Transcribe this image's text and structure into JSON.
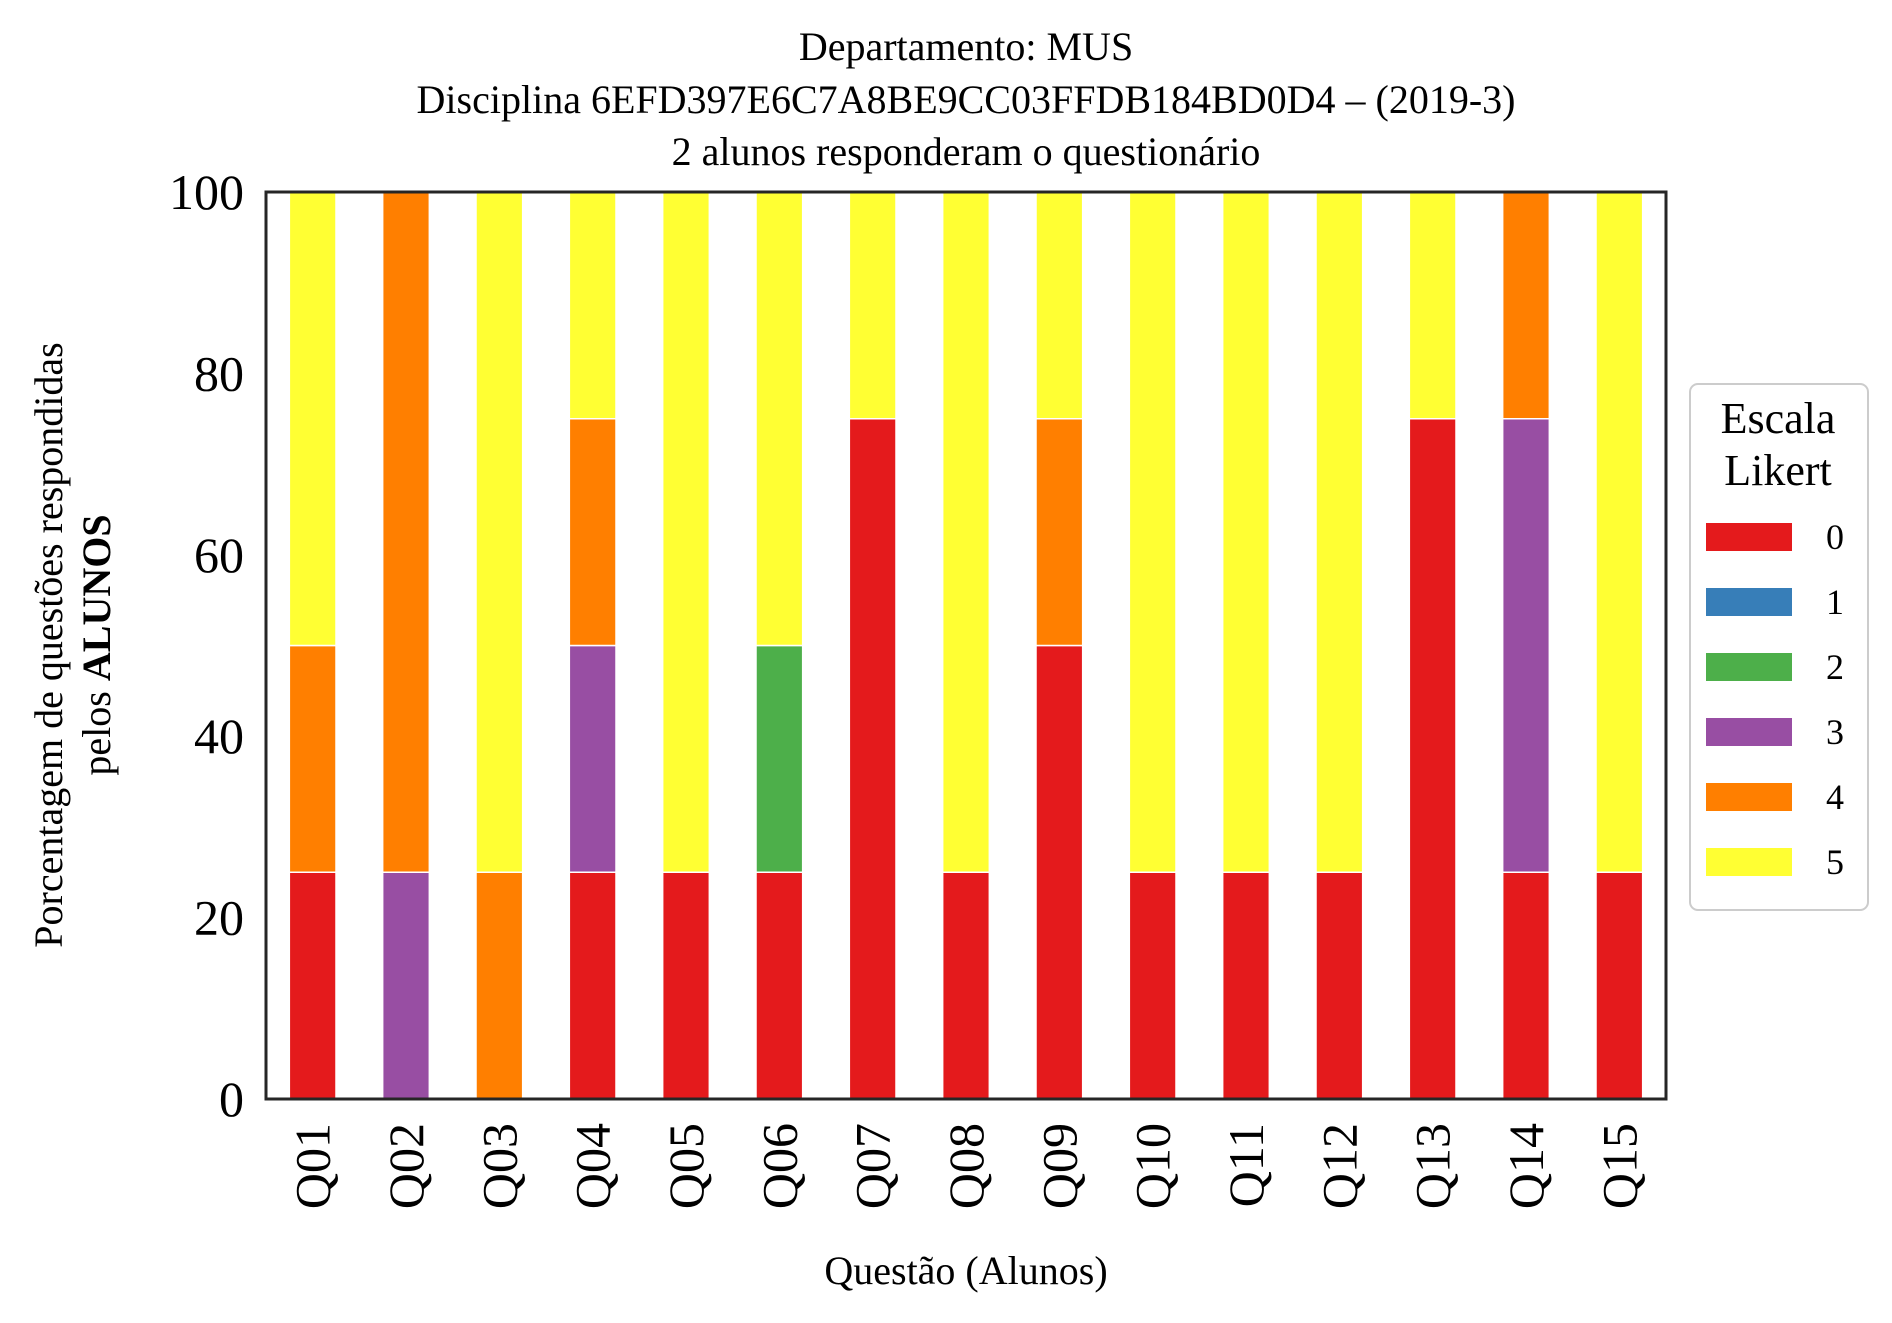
{
  "chart_data": {
    "type": "bar",
    "stacked": true,
    "title_lines": [
      "Departamento: MUS",
      "Disciplina 6EFD397E6C7A8BE9CC03FFDB184BD0D4 – (2019-3)",
      "2 alunos responderam o questionário"
    ],
    "xlabel": "Questão (Alunos)",
    "ylabel_line1": "Porcentagem de questões respondidas",
    "ylabel_line2_prefix": "pelos ",
    "ylabel_line2_bold": "ALUNOS",
    "ylim": [
      0,
      100
    ],
    "yticks": [
      "0",
      "20",
      "40",
      "60",
      "80",
      "100"
    ],
    "categories": [
      "Q01",
      "Q02",
      "Q03",
      "Q04",
      "Q05",
      "Q06",
      "Q07",
      "Q08",
      "Q09",
      "Q10",
      "Q11",
      "Q12",
      "Q13",
      "Q14",
      "Q15"
    ],
    "legend_title_lines": [
      "Escala",
      "Likert"
    ],
    "legend_position": "right",
    "grid": false,
    "series": [
      {
        "name": "0",
        "color": "#e41a1c",
        "values": [
          25,
          0,
          0,
          25,
          25,
          25,
          75,
          25,
          50,
          25,
          25,
          25,
          75,
          25,
          25
        ]
      },
      {
        "name": "1",
        "color": "#377eb8",
        "values": [
          0,
          0,
          0,
          0,
          0,
          0,
          0,
          0,
          0,
          0,
          0,
          0,
          0,
          0,
          0
        ]
      },
      {
        "name": "2",
        "color": "#4daf4a",
        "values": [
          0,
          0,
          0,
          0,
          0,
          25,
          0,
          0,
          0,
          0,
          0,
          0,
          0,
          0,
          0
        ]
      },
      {
        "name": "3",
        "color": "#984ea3",
        "values": [
          0,
          25,
          0,
          25,
          0,
          0,
          0,
          0,
          0,
          0,
          0,
          0,
          0,
          50,
          0
        ]
      },
      {
        "name": "4",
        "color": "#ff7f00",
        "values": [
          25,
          75,
          25,
          25,
          0,
          0,
          0,
          0,
          25,
          0,
          0,
          0,
          0,
          25,
          0
        ]
      },
      {
        "name": "5",
        "color": "#ffff33",
        "values": [
          50,
          0,
          75,
          25,
          75,
          50,
          25,
          75,
          25,
          75,
          75,
          75,
          25,
          0,
          75
        ]
      }
    ]
  }
}
